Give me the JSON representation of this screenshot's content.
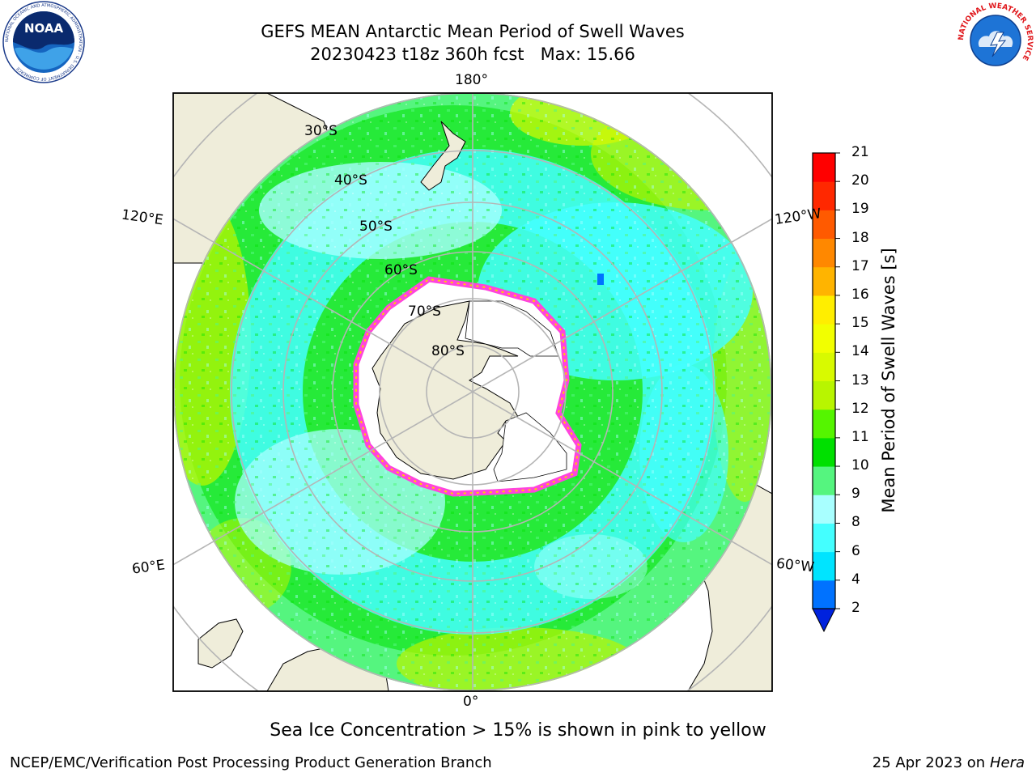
{
  "title": {
    "line1": "GEFS MEAN Antarctic Mean Period of Swell Waves",
    "line2": "20230423 t18z 360h fcst   Max: 15.66"
  },
  "logos": {
    "noaa": {
      "text": "NOAA",
      "ring_text": "NATIONAL OCEANIC AND ATMOSPHERIC ADMINISTRATION · U.S. DEPARTMENT OF COMMERCE"
    },
    "nws": {
      "ring_text": "NATIONAL WEATHER SERVICE"
    }
  },
  "map": {
    "projection": "south-polar-stereographic",
    "longitude_labels": {
      "top": "180°",
      "bottom": "0°",
      "upper_left": "120°E",
      "upper_right": "120°W",
      "lower_left": "60°E",
      "lower_right": "60°W"
    },
    "latitude_labels": [
      "30°S",
      "40°S",
      "50°S",
      "60°S",
      "70°S",
      "80°S"
    ],
    "colors": {
      "land": "#efedda",
      "ice_shelf": "#ffffff",
      "sea_ice": "#ff44dd",
      "grid": "#b5b5b5"
    }
  },
  "colorbar": {
    "label": "Mean Period of Swell Waves [s]",
    "ticks": [
      "2",
      "4",
      "6",
      "8",
      "9",
      "10",
      "11",
      "12",
      "13",
      "14",
      "15",
      "16",
      "17",
      "18",
      "19",
      "20",
      "21"
    ],
    "colors": [
      "#0072ff",
      "#00e4ff",
      "#44ffff",
      "#a8ffff",
      "#55f57f",
      "#00e000",
      "#55f500",
      "#b8f500",
      "#d8fa00",
      "#f2ff00",
      "#ffee00",
      "#ffb400",
      "#ff8800",
      "#ff5a00",
      "#ff2800",
      "#ff0000"
    ],
    "extend_color": "#0022dd"
  },
  "caption": "Sea Ice Concentration > 15% is shown in pink to yellow",
  "footer": {
    "left": "NCEP/EMC/Verification Post Processing Product Generation Branch",
    "right_date": "25 Apr 2023 on ",
    "right_host": "Hera"
  }
}
